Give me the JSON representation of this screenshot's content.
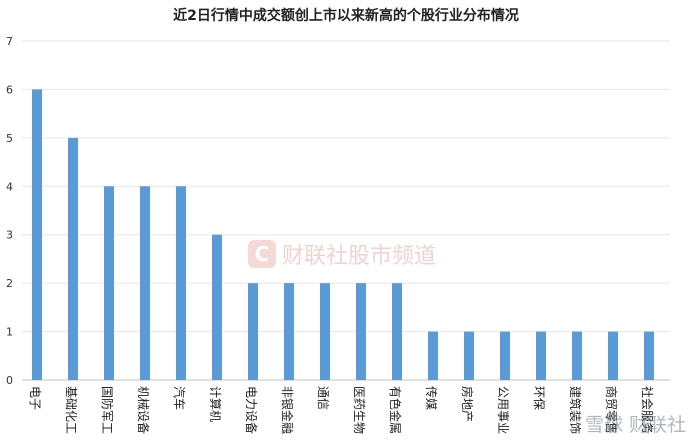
{
  "chart_data": {
    "type": "bar",
    "title": "近2日行情中成交额创上市以来新高的个股行业分布情况",
    "categories": [
      "电子",
      "基础化工",
      "国防军工",
      "机械设备",
      "汽车",
      "计算机",
      "电力设备",
      "非银金融",
      "通信",
      "医药生物",
      "有色金属",
      "传媒",
      "房地产",
      "公用事业",
      "环保",
      "建筑装饰",
      "商贸零售",
      "社会服务"
    ],
    "values": [
      6,
      5,
      4,
      4,
      4,
      3,
      2,
      2,
      2,
      2,
      2,
      1,
      1,
      1,
      1,
      1,
      1,
      1
    ],
    "yticks": [
      0,
      1,
      2,
      3,
      4,
      5,
      6,
      7
    ],
    "ylim": [
      0,
      7
    ],
    "grid": true,
    "legend": "none",
    "bar_color": "#5b9bd5"
  },
  "watermark": {
    "center_logo": "C",
    "center_text": "财联社股市频道",
    "corner_text": "雪球 财联社"
  }
}
